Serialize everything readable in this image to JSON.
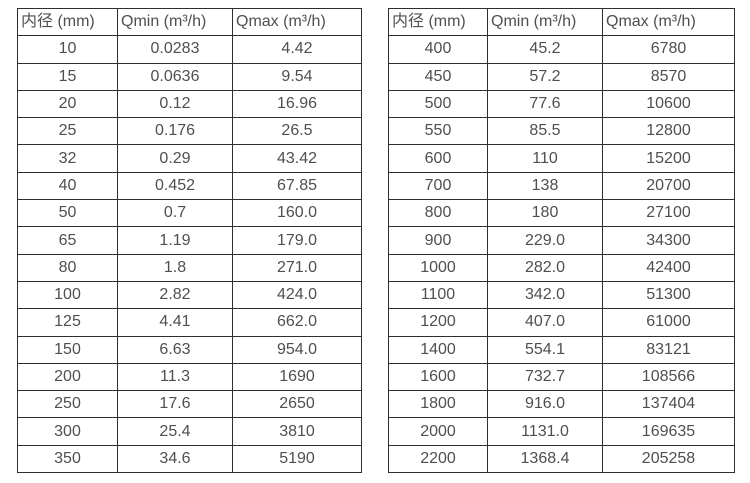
{
  "colors": {
    "border": "#2e2e2e",
    "text": "#4f4f4f",
    "background": "#ffffff"
  },
  "tables": [
    {
      "name": "flow-range-table-small-diameters",
      "columns": [
        "内径 (mm)",
        "Qmin (m³/h)",
        "Qmax (m³/h)"
      ],
      "rows": [
        [
          "10",
          "0.0283",
          "4.42"
        ],
        [
          "15",
          "0.0636",
          "9.54"
        ],
        [
          "20",
          "0.12",
          "16.96"
        ],
        [
          "25",
          "0.176",
          "26.5"
        ],
        [
          "32",
          "0.29",
          "43.42"
        ],
        [
          "40",
          "0.452",
          "67.85"
        ],
        [
          "50",
          "0.7",
          "160.0"
        ],
        [
          "65",
          "1.19",
          "179.0"
        ],
        [
          "80",
          "1.8",
          "271.0"
        ],
        [
          "100",
          "2.82",
          "424.0"
        ],
        [
          "125",
          "4.41",
          "662.0"
        ],
        [
          "150",
          "6.63",
          "954.0"
        ],
        [
          "200",
          "11.3",
          "1690"
        ],
        [
          "250",
          "17.6",
          "2650"
        ],
        [
          "300",
          "25.4",
          "3810"
        ],
        [
          "350",
          "34.6",
          "5190"
        ]
      ]
    },
    {
      "name": "flow-range-table-large-diameters",
      "columns": [
        "内径 (mm)",
        "Qmin (m³/h)",
        "Qmax (m³/h)"
      ],
      "rows": [
        [
          "400",
          "45.2",
          "6780"
        ],
        [
          "450",
          "57.2",
          "8570"
        ],
        [
          "500",
          "77.6",
          "10600"
        ],
        [
          "550",
          "85.5",
          "12800"
        ],
        [
          "600",
          "110",
          "15200"
        ],
        [
          "700",
          "138",
          "20700"
        ],
        [
          "800",
          "180",
          "27100"
        ],
        [
          "900",
          "229.0",
          "34300"
        ],
        [
          "1000",
          "282.0",
          "42400"
        ],
        [
          "1100",
          "342.0",
          "51300"
        ],
        [
          "1200",
          "407.0",
          "61000"
        ],
        [
          "1400",
          "554.1",
          "83121"
        ],
        [
          "1600",
          "732.7",
          "108566"
        ],
        [
          "1800",
          "916.0",
          "137404"
        ],
        [
          "2000",
          "1131.0",
          "169635"
        ],
        [
          "2200",
          "1368.4",
          "205258"
        ]
      ]
    }
  ]
}
